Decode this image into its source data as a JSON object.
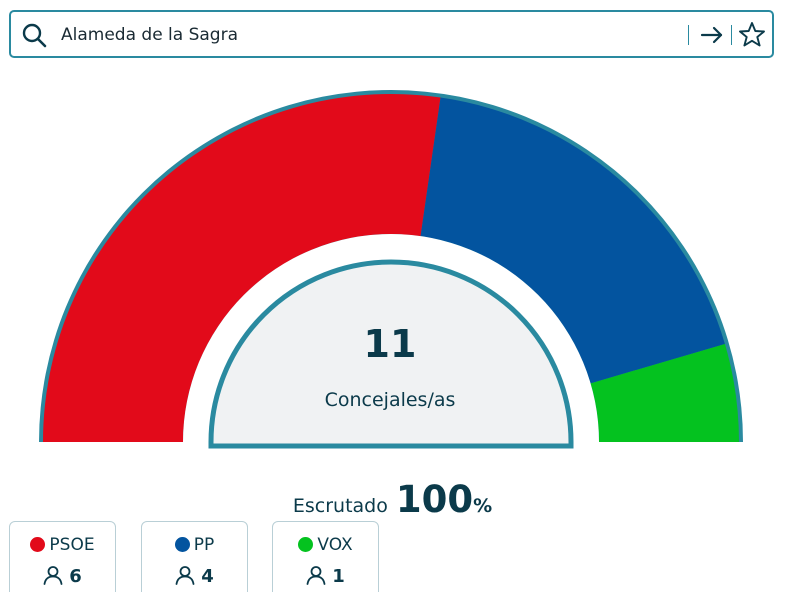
{
  "search": {
    "value": "Alameda de la Sagra",
    "search_icon": "search-icon",
    "go_icon": "arrow-right-icon",
    "favorite_icon": "star-icon"
  },
  "chamber": {
    "total_seats": "11",
    "total_label": "Concejales/as",
    "border_color": "#2a8aa0",
    "inner_fill": "#f0f2f3"
  },
  "scrutiny": {
    "label": "Escrutado",
    "value": "100",
    "unit": "%"
  },
  "parties": [
    {
      "name": "PSOE",
      "seats": "6",
      "color": "#e20a1a",
      "seat_count": 6
    },
    {
      "name": "PP",
      "seats": "4",
      "color": "#03549f",
      "seat_count": 4
    },
    {
      "name": "VOX",
      "seats": "1",
      "color": "#04c21f",
      "seat_count": 1
    }
  ],
  "seat_icon": "user-icon"
}
